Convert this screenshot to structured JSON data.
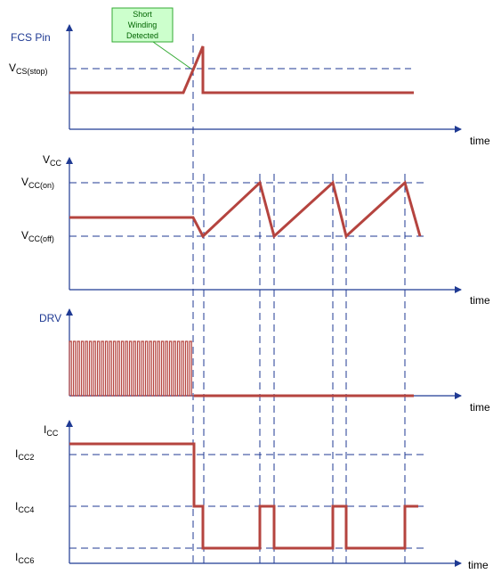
{
  "annotation": {
    "lines": [
      "Short",
      "Winding",
      "Detected"
    ]
  },
  "panels": {
    "fcs": {
      "label": "FCS Pin",
      "ref": {
        "main": "V",
        "sub": "CS(stop)"
      },
      "time": "time"
    },
    "vcc": {
      "label": {
        "main": "V",
        "sub": "CC"
      },
      "on": {
        "main": "V",
        "sub": "CC(on)"
      },
      "off": {
        "main": "V",
        "sub": "CC(off)"
      },
      "time": "time"
    },
    "drv": {
      "label": "DRV",
      "time": "time"
    },
    "icc": {
      "label": {
        "main": "I",
        "sub": "CC"
      },
      "icc2": {
        "main": "I",
        "sub": "CC2"
      },
      "icc4": {
        "main": "I",
        "sub": "CC4"
      },
      "icc6": {
        "main": "I",
        "sub": "CC6"
      },
      "time": "time"
    }
  },
  "colors": {
    "axis": "#1f3a93",
    "waveform": "#b5443f",
    "note_fill": "#ccffcc",
    "note_border": "#33aa33"
  }
}
